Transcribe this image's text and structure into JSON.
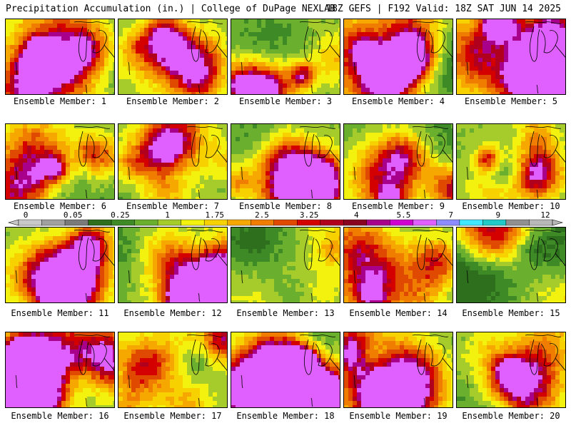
{
  "header": {
    "title": "Precipitation Accumulation (in.) | College of DuPage NEXLAB",
    "run_info": "18Z GEFS | F192 Valid: 18Z SAT JUN 14 2025"
  },
  "colors": {
    "background": "#ffffff",
    "border": "#000000"
  },
  "colorbar": {
    "tick_labels": [
      "0",
      "0.05",
      "0.25",
      "1",
      "1.75",
      "2.5",
      "3.25",
      "4",
      "5.5",
      "7",
      "9",
      "12"
    ],
    "colors": [
      "#c8c8c8",
      "#a0a0a0",
      "#7a7a7a",
      "#2e6f1e",
      "#3e8a26",
      "#6ab02e",
      "#a6cc2c",
      "#f2f20e",
      "#f8d200",
      "#f6a800",
      "#f07c00",
      "#e04a00",
      "#d40000",
      "#b0001e",
      "#8a0020",
      "#a8008a",
      "#d000d0",
      "#e060ff",
      "#8c8cff",
      "#40e8ff",
      "#20c8c8",
      "#909090",
      "#b8b8b8"
    ]
  },
  "panels": [
    {
      "label": "Ensemble Member: 1",
      "intensity": 0.55,
      "seed": 1
    },
    {
      "label": "Ensemble Member: 2",
      "intensity": 0.4,
      "seed": 2
    },
    {
      "label": "Ensemble Member: 3",
      "intensity": 0.6,
      "seed": 3
    },
    {
      "label": "Ensemble Member: 4",
      "intensity": 0.7,
      "seed": 4
    },
    {
      "label": "Ensemble Member: 5",
      "intensity": 0.45,
      "seed": 5
    },
    {
      "label": "Ensemble Member: 6",
      "intensity": 0.5,
      "seed": 6
    },
    {
      "label": "Ensemble Member: 7",
      "intensity": 0.45,
      "seed": 7
    },
    {
      "label": "Ensemble Member: 8",
      "intensity": 0.45,
      "seed": 8
    },
    {
      "label": "Ensemble Member: 9",
      "intensity": 0.65,
      "seed": 9
    },
    {
      "label": "Ensemble Member: 10",
      "intensity": 0.35,
      "seed": 10
    },
    {
      "label": "Ensemble Member: 11",
      "intensity": 0.6,
      "seed": 11
    },
    {
      "label": "Ensemble Member: 12",
      "intensity": 0.45,
      "seed": 12
    },
    {
      "label": "Ensemble Member: 13",
      "intensity": 0.55,
      "seed": 13
    },
    {
      "label": "Ensemble Member: 14",
      "intensity": 0.7,
      "seed": 14
    },
    {
      "label": "Ensemble Member: 15",
      "intensity": 0.35,
      "seed": 15
    },
    {
      "label": "Ensemble Member: 16",
      "intensity": 0.55,
      "seed": 16
    },
    {
      "label": "Ensemble Member: 17",
      "intensity": 0.45,
      "seed": 17
    },
    {
      "label": "Ensemble Member: 18",
      "intensity": 0.7,
      "seed": 18
    },
    {
      "label": "Ensemble Member: 19",
      "intensity": 0.45,
      "seed": 19
    },
    {
      "label": "Ensemble Member: 20",
      "intensity": 0.7,
      "seed": 20
    }
  ]
}
